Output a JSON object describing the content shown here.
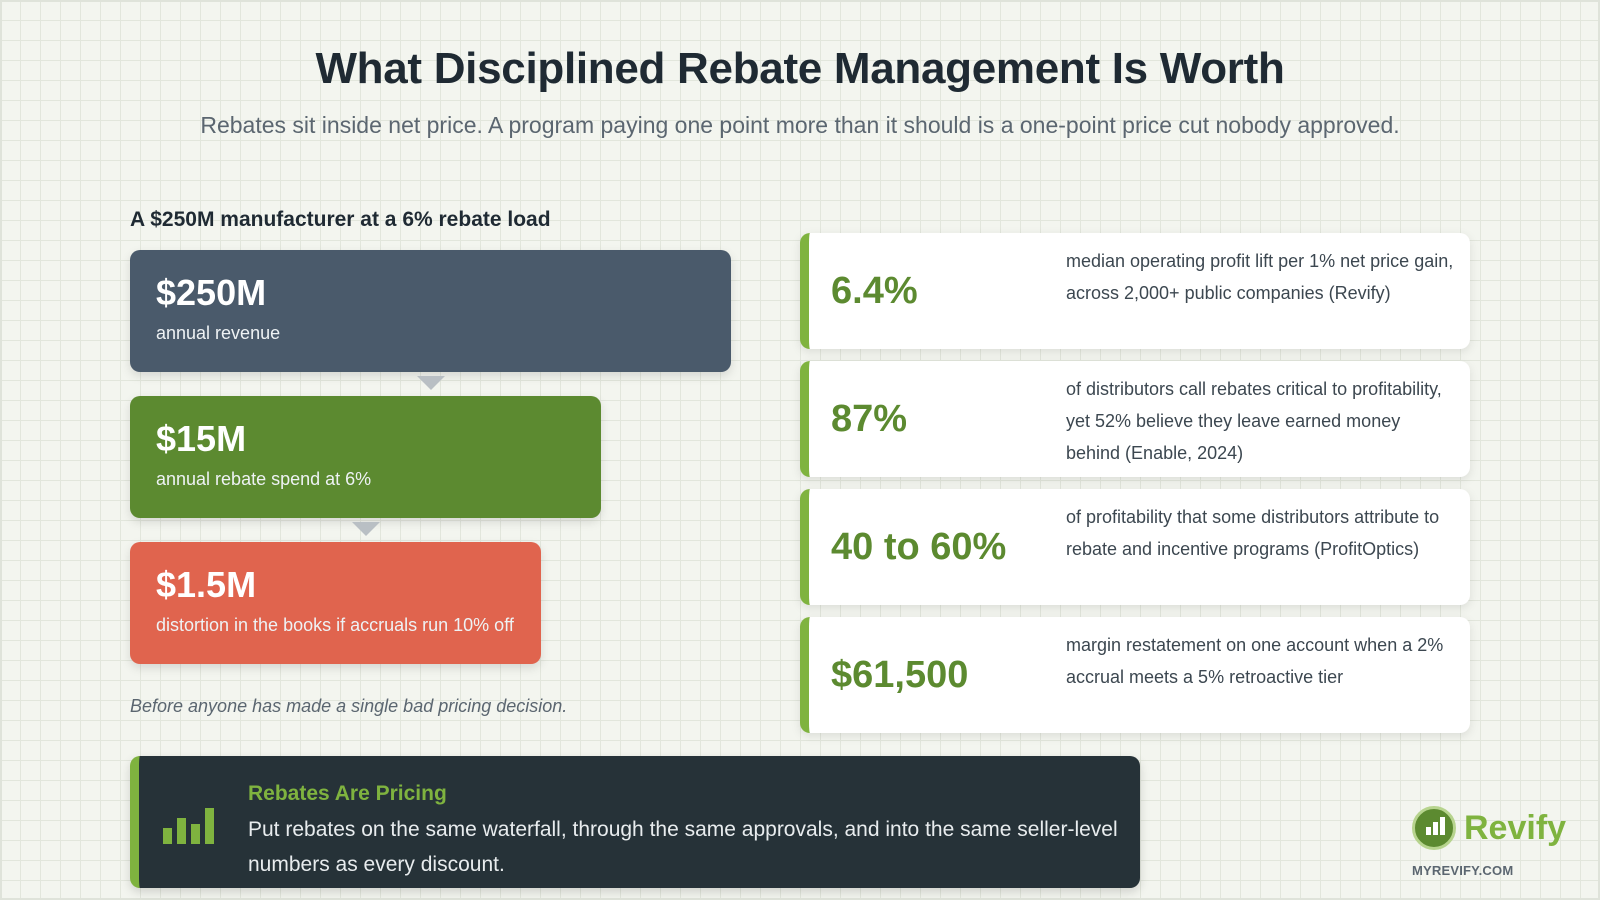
{
  "header": {
    "title": "What Disciplined Rebate Management Is Worth",
    "subtitle": "Rebates sit inside net price. A program paying one point more than it should is a one-point price cut nobody approved."
  },
  "waterfall": {
    "heading": "A $250M manufacturer at a 6% rebate load",
    "steps": [
      {
        "value": "$250M",
        "label": "annual revenue"
      },
      {
        "value": "$15M",
        "label": "annual rebate spend at 6%"
      },
      {
        "value": "$1.5M",
        "label": "distortion in the books if accruals run 10% off"
      }
    ],
    "caption": "Before anyone has made a single bad pricing decision."
  },
  "stats": [
    {
      "value": "6.4%",
      "description": "median operating profit lift per 1% net price gain, across 2,000+ public companies (Revify)"
    },
    {
      "value": "87%",
      "description": "of distributors call rebates critical to profitability, yet 52% believe they leave earned money behind (Enable, 2024)"
    },
    {
      "value": "40 to 60%",
      "description": "of profitability that some distributors attribute to rebate and incentive programs (ProfitOptics)"
    },
    {
      "value": "$61,500",
      "description": "margin restatement on one account when a 2% accrual meets a 5% retroactive tier"
    }
  ],
  "banner": {
    "icon": "bar-chart-icon",
    "heading": "Rebates Are Pricing",
    "text": "Put rebates on the same waterfall, through the same approvals, and into the same seller-level numbers as every discount."
  },
  "brand": {
    "name": "Revify",
    "url": "MYREVIFY.COM",
    "icon": "revify-logo-icon"
  },
  "colors": {
    "accent_green": "#7fb33f",
    "step_slate": "#4a5a6b",
    "step_green": "#5c8a30",
    "step_red": "#e0644e",
    "banner_dark": "#263238"
  }
}
